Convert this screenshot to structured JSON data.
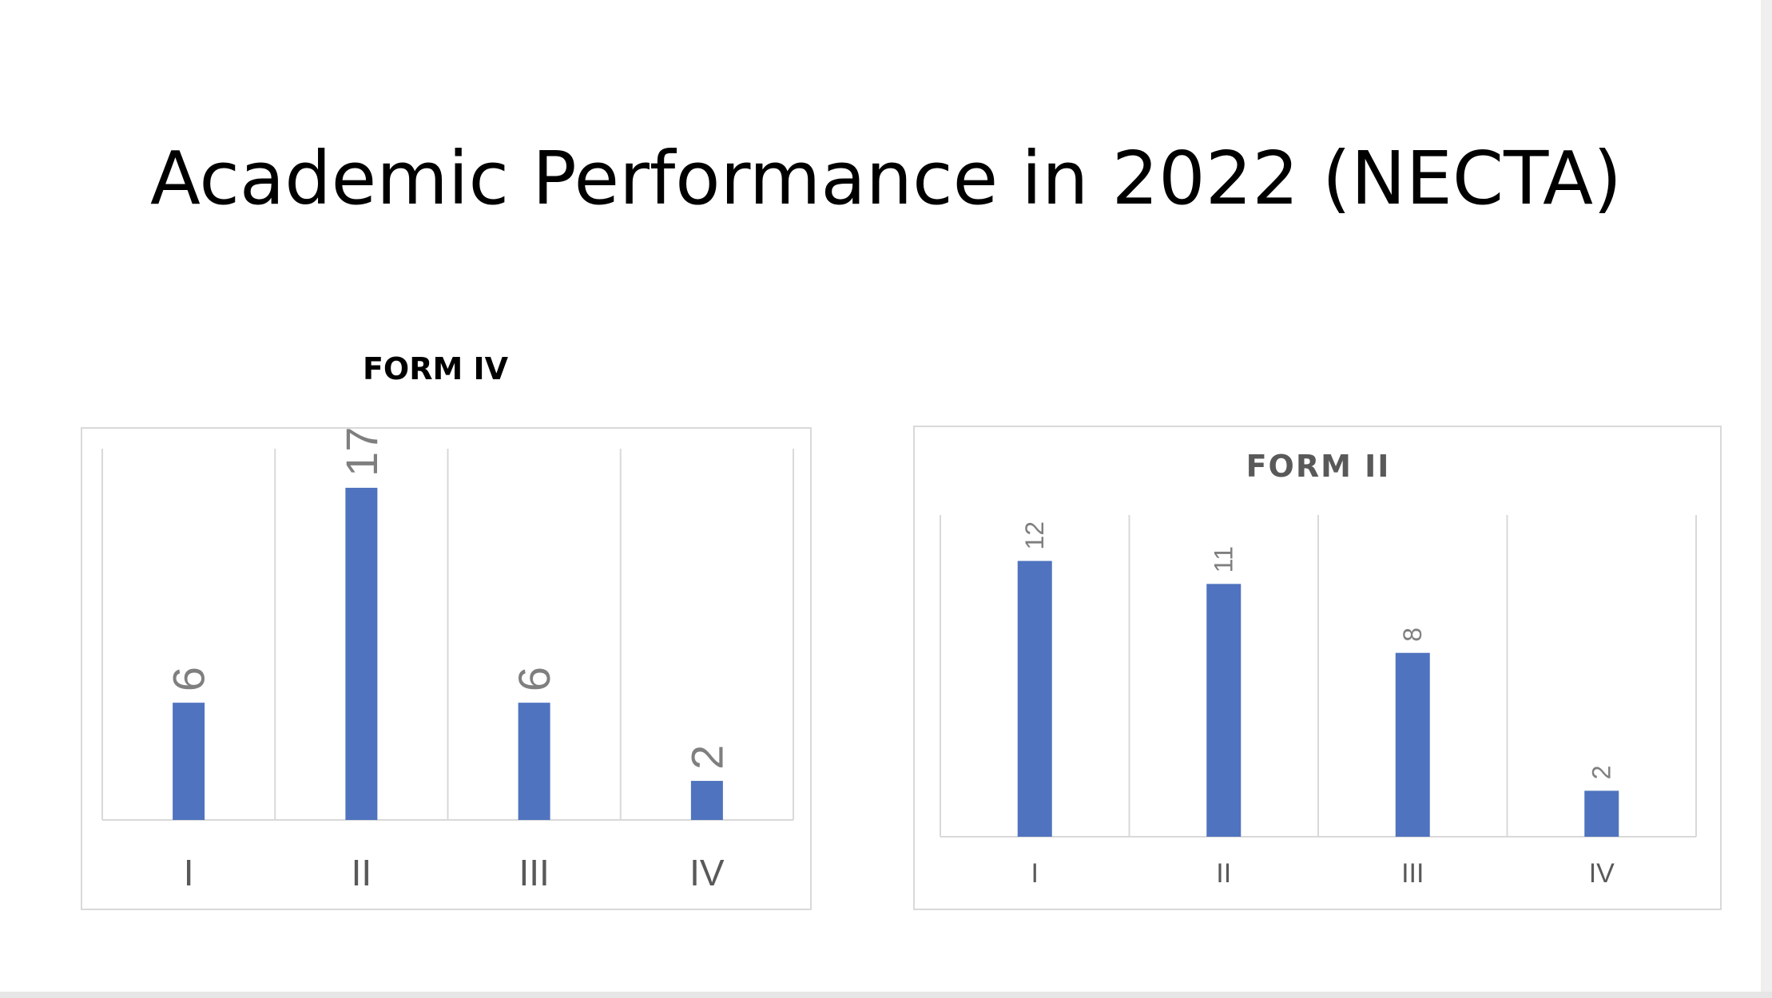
{
  "slide": {
    "title": "Academic Performance in 2022 (NECTA)"
  },
  "colors": {
    "bar": "#4f73be",
    "gridline": "#d9d9d9",
    "label": "#7f7f7f",
    "title": "#000000"
  },
  "chart_data": [
    {
      "type": "bar",
      "title": "FORM IV",
      "categories": [
        "I",
        "II",
        "III",
        "IV"
      ],
      "values": [
        6,
        17,
        6,
        2
      ],
      "data_labels": [
        "6",
        "17",
        "6",
        "2"
      ],
      "data_label_orientation": "vertical",
      "ylim": [
        0,
        19
      ],
      "grid": "vertical",
      "legend": "none"
    },
    {
      "type": "bar",
      "title": "FORM II",
      "categories": [
        "I",
        "II",
        "III",
        "IV"
      ],
      "values": [
        12,
        11,
        8,
        2
      ],
      "data_labels": [
        "12",
        "11",
        "8",
        "2"
      ],
      "data_label_orientation": "vertical",
      "ylim": [
        0,
        14
      ],
      "grid": "vertical",
      "legend": "none"
    }
  ]
}
